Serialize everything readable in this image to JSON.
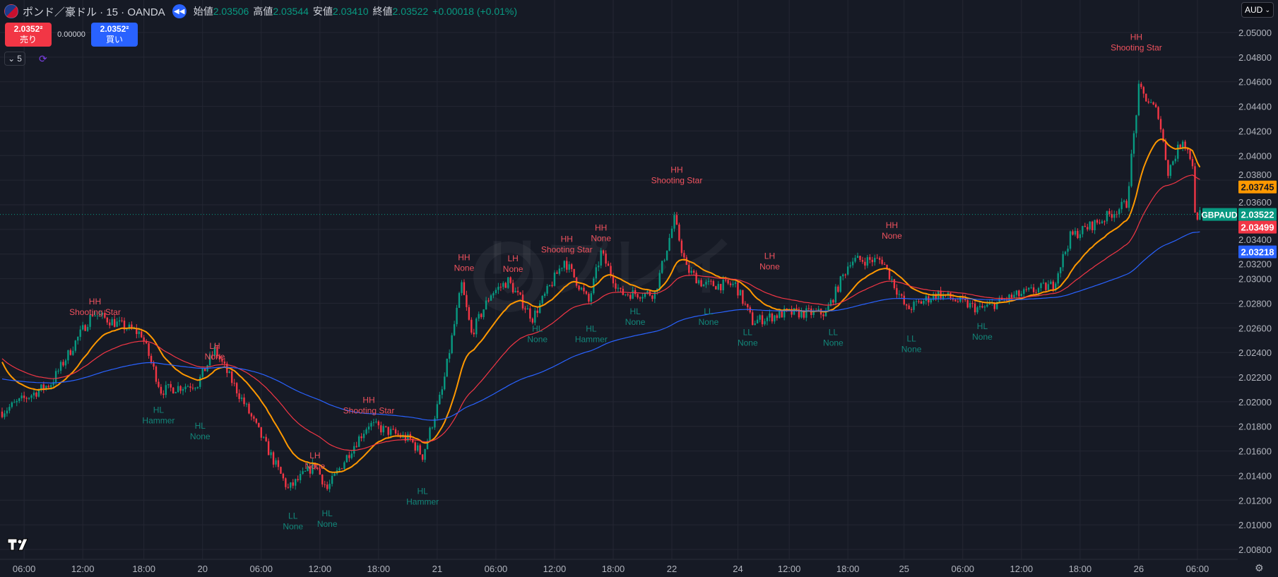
{
  "header": {
    "symbol_title": "ポンド／豪ドル · 15 · OANDA",
    "ohlc": [
      {
        "label": "始値",
        "value": "2.03506"
      },
      {
        "label": "高値",
        "value": "2.03544"
      },
      {
        "label": "安値",
        "value": "2.03410"
      },
      {
        "label": "終値",
        "value": "2.03522"
      }
    ],
    "change": "+0.00018 (+0.01%)"
  },
  "trade": {
    "sell_price": "2.0352²",
    "sell_label": "売り",
    "spread": "0.00000",
    "buy_price": "2.0352²",
    "buy_label": "買い"
  },
  "lots": "5",
  "currency": "AUD",
  "colors": {
    "up": "#089981",
    "down": "#f23645",
    "ma_fast": "#ff9800",
    "ma_mid": "#f23645",
    "ma_slow": "#2962ff",
    "background": "#161a25",
    "grid": "#242733"
  },
  "chart_data": {
    "type": "candlestick",
    "symbol": "GBPAUD",
    "ylim": [
      2.008,
      2.05
    ],
    "y_ticks": [
      "2.05000",
      "2.04800",
      "2.04600",
      "2.04400",
      "2.04200",
      "2.04000",
      "2.03800",
      "2.03600",
      "2.03400",
      "2.03200",
      "2.03000",
      "2.02800",
      "2.02600",
      "2.02400",
      "2.02200",
      "2.02000",
      "2.01800",
      "2.01600",
      "2.01400",
      "2.01200",
      "2.01000",
      "2.00800"
    ],
    "x_ticks": [
      {
        "bar": 9,
        "label": "06:00"
      },
      {
        "bar": 33,
        "label": "12:00"
      },
      {
        "bar": 58,
        "label": "18:00"
      },
      {
        "bar": 82,
        "label": "20"
      },
      {
        "bar": 106,
        "label": "06:00"
      },
      {
        "bar": 130,
        "label": "12:00"
      },
      {
        "bar": 154,
        "label": "18:00"
      },
      {
        "bar": 178,
        "label": "21"
      },
      {
        "bar": 202,
        "label": "06:00"
      },
      {
        "bar": 226,
        "label": "12:00"
      },
      {
        "bar": 250,
        "label": "18:00"
      },
      {
        "bar": 274,
        "label": "22"
      },
      {
        "bar": 301,
        "label": "24"
      },
      {
        "bar": 322,
        "label": "12:00"
      },
      {
        "bar": 346,
        "label": "18:00"
      },
      {
        "bar": 369,
        "label": "25"
      },
      {
        "bar": 393,
        "label": "06:00"
      },
      {
        "bar": 417,
        "label": "12:00"
      },
      {
        "bar": 441,
        "label": "18:00"
      },
      {
        "bar": 465,
        "label": "26"
      },
      {
        "bar": 489,
        "label": "06:00"
      }
    ],
    "price_path": [
      [
        0,
        2.0192
      ],
      [
        20,
        2.0215
      ],
      [
        37,
        2.0272
      ],
      [
        57,
        2.0255
      ],
      [
        65,
        2.0209
      ],
      [
        80,
        2.0215
      ],
      [
        87,
        2.0242
      ],
      [
        100,
        2.0195
      ],
      [
        117,
        2.0129
      ],
      [
        128,
        2.0149
      ],
      [
        133,
        2.0129
      ],
      [
        143,
        2.0162
      ],
      [
        150,
        2.0182
      ],
      [
        167,
        2.0169
      ],
      [
        172,
        2.0156
      ],
      [
        180,
        2.0209
      ],
      [
        188,
        2.0295
      ],
      [
        192,
        2.0255
      ],
      [
        200,
        2.0288
      ],
      [
        207,
        2.0298
      ],
      [
        217,
        2.0268
      ],
      [
        230,
        2.0315
      ],
      [
        240,
        2.0281
      ],
      [
        245,
        2.0321
      ],
      [
        253,
        2.0288
      ],
      [
        267,
        2.0288
      ],
      [
        275,
        2.0348
      ],
      [
        280,
        2.0308
      ],
      [
        287,
        2.0295
      ],
      [
        300,
        2.0295
      ],
      [
        307,
        2.0265
      ],
      [
        320,
        2.0272
      ],
      [
        337,
        2.0272
      ],
      [
        347,
        2.0315
      ],
      [
        360,
        2.0315
      ],
      [
        370,
        2.0275
      ],
      [
        383,
        2.0288
      ],
      [
        400,
        2.0275
      ],
      [
        413,
        2.0285
      ],
      [
        430,
        2.0295
      ],
      [
        437,
        2.0334
      ],
      [
        450,
        2.0348
      ],
      [
        460,
        2.0361
      ],
      [
        465,
        2.0454
      ],
      [
        473,
        2.0434
      ],
      [
        477,
        2.0387
      ],
      [
        483,
        2.0414
      ],
      [
        487,
        2.0394
      ],
      [
        488,
        2.0351
      ],
      [
        490,
        2.0352
      ]
    ],
    "last_bar": 490,
    "moving_averages": [
      {
        "name": "fast",
        "period": 20,
        "color": "#ff9800",
        "last_value": "2.03745"
      },
      {
        "name": "mid",
        "period": 50,
        "color": "#f23645",
        "last_value": "2.03499"
      },
      {
        "name": "slow",
        "period": 150,
        "color": "#2962ff",
        "last_value": "2.03218"
      }
    ],
    "last_price": {
      "label": "GBPAUD",
      "value": "2.03522"
    },
    "annotations": [
      {
        "bar": 38,
        "price": 2.0279,
        "lines": [
          "HH",
          "Shooting Star"
        ],
        "kind": "high"
      },
      {
        "bar": 87,
        "price": 2.0243,
        "lines": [
          "LH",
          "None"
        ],
        "kind": "high"
      },
      {
        "bar": 64,
        "price": 2.0191,
        "lines": [
          "HL",
          "Hammer"
        ],
        "kind": "low"
      },
      {
        "bar": 81,
        "price": 2.0178,
        "lines": [
          "HL",
          "None"
        ],
        "kind": "low"
      },
      {
        "bar": 150,
        "price": 2.0199,
        "lines": [
          "HH",
          "Shooting Star"
        ],
        "kind": "high"
      },
      {
        "bar": 128,
        "price": 2.0154,
        "lines": [
          "LH",
          "None"
        ],
        "kind": "high"
      },
      {
        "bar": 119,
        "price": 2.0105,
        "lines": [
          "LL",
          "None"
        ],
        "kind": "low"
      },
      {
        "bar": 133,
        "price": 2.0107,
        "lines": [
          "HL",
          "None"
        ],
        "kind": "low"
      },
      {
        "bar": 172,
        "price": 2.0125,
        "lines": [
          "HL",
          "Hammer"
        ],
        "kind": "low"
      },
      {
        "bar": 189,
        "price": 2.0315,
        "lines": [
          "HH",
          "None"
        ],
        "kind": "high"
      },
      {
        "bar": 209,
        "price": 2.0314,
        "lines": [
          "LH",
          "None"
        ],
        "kind": "high"
      },
      {
        "bar": 231,
        "price": 2.033,
        "lines": [
          "HH",
          "Shooting Star"
        ],
        "kind": "high"
      },
      {
        "bar": 245,
        "price": 2.0339,
        "lines": [
          "HH",
          "None"
        ],
        "kind": "high"
      },
      {
        "bar": 219,
        "price": 2.0257,
        "lines": [
          "HL",
          "None"
        ],
        "kind": "low"
      },
      {
        "bar": 241,
        "price": 2.0257,
        "lines": [
          "HL",
          "Hammer"
        ],
        "kind": "low"
      },
      {
        "bar": 259,
        "price": 2.0271,
        "lines": [
          "HL",
          "None"
        ],
        "kind": "low"
      },
      {
        "bar": 276,
        "price": 2.0386,
        "lines": [
          "HH",
          "Shooting Star"
        ],
        "kind": "high"
      },
      {
        "bar": 314,
        "price": 2.0316,
        "lines": [
          "LH",
          "None"
        ],
        "kind": "high"
      },
      {
        "bar": 289,
        "price": 2.0271,
        "lines": [
          "LL",
          "None"
        ],
        "kind": "low"
      },
      {
        "bar": 305,
        "price": 2.0254,
        "lines": [
          "LL",
          "None"
        ],
        "kind": "low"
      },
      {
        "bar": 340,
        "price": 2.0254,
        "lines": [
          "LL",
          "None"
        ],
        "kind": "low"
      },
      {
        "bar": 364,
        "price": 2.0341,
        "lines": [
          "HH",
          "None"
        ],
        "kind": "high"
      },
      {
        "bar": 372,
        "price": 2.0249,
        "lines": [
          "LL",
          "None"
        ],
        "kind": "low"
      },
      {
        "bar": 401,
        "price": 2.0259,
        "lines": [
          "HL",
          "None"
        ],
        "kind": "low"
      },
      {
        "bar": 464,
        "price": 2.0494,
        "lines": [
          "HH",
          "Shooting Star"
        ],
        "kind": "high"
      }
    ],
    "watermark": "リプレイ"
  }
}
